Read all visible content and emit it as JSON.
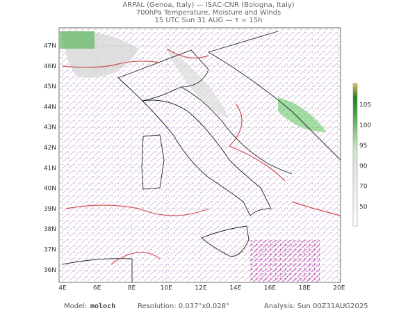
{
  "header": {
    "title_lines": [
      "ARPAL (Genoa, Italy)  —  ISAC-CNR (Bologna, Italy)",
      "700hPa Temperature, Moisture and Winds",
      "15 UTC Sun 31 AUG  —  τ = 15h"
    ]
  },
  "map": {
    "lat_labels": [
      "47N",
      "46N",
      "45N",
      "44N",
      "43N",
      "42N",
      "41N",
      "40N",
      "39N",
      "38N",
      "37N",
      "36N"
    ],
    "lon_labels": [
      "4E",
      "6E",
      "8E",
      "10E",
      "12E",
      "14E",
      "16E",
      "18E",
      "20E"
    ]
  },
  "colorbar": {
    "labels": [
      105,
      100,
      95,
      90,
      70,
      50
    ]
  },
  "footer": {
    "model_label": "Model:",
    "model": "moloch",
    "resolution": "Resolution: 0.037°x0.028°",
    "analysis": "Analysis: Sun 00Z31AUG2025"
  }
}
